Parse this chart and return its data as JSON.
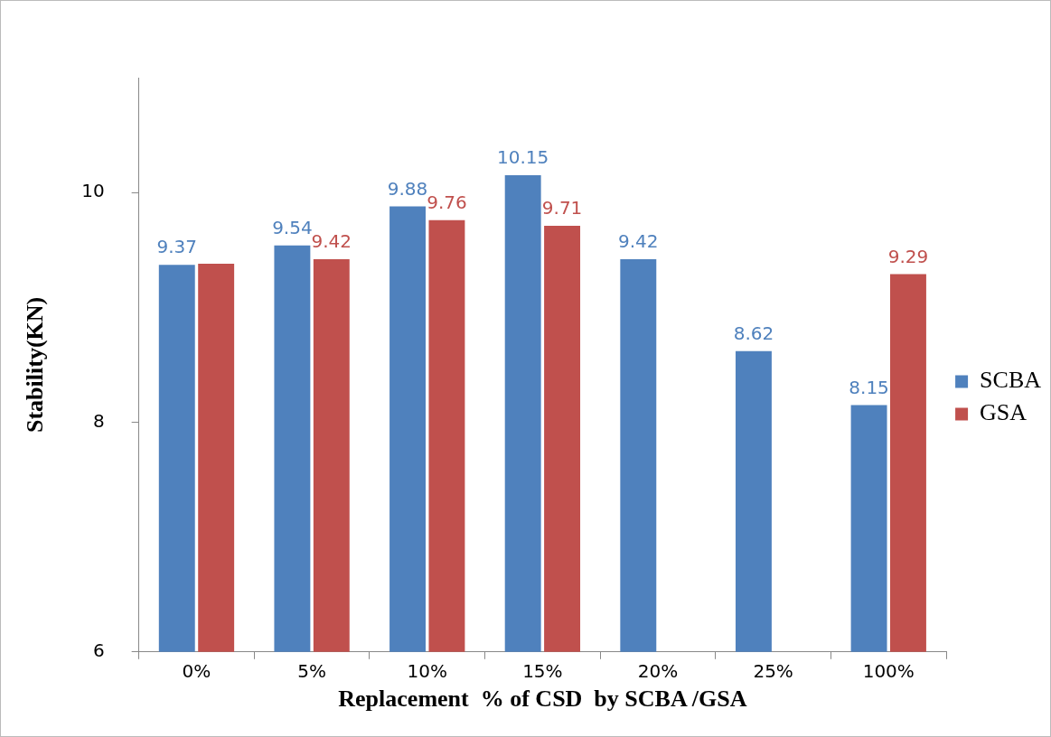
{
  "chart_data": {
    "type": "bar",
    "xlabel": "Replacement  % of CSD  by SCBA /GSA",
    "ylabel": "Stability(KN)",
    "categories": [
      "0%",
      "5%",
      "10%",
      "15%",
      "20%",
      "25%",
      "100%"
    ],
    "series": [
      {
        "name": "SCBA",
        "color": "#4f81bd",
        "values": [
          9.37,
          9.54,
          9.88,
          10.15,
          9.42,
          8.62,
          8.15
        ],
        "value_labels": [
          "9.37",
          "9.54",
          "9.88",
          "10.15",
          "9.42",
          "8.62",
          "8.15"
        ]
      },
      {
        "name": "GSA",
        "color": "#c0504d",
        "values": [
          9.38,
          9.42,
          9.76,
          9.71,
          null,
          null,
          9.29
        ],
        "value_labels": [
          null,
          "9.42",
          "9.76",
          "9.71",
          null,
          null,
          "9.29"
        ]
      }
    ],
    "ylim": [
      6,
      11
    ],
    "yticks": [
      6,
      8,
      10
    ],
    "grid": false,
    "legend": "right"
  }
}
